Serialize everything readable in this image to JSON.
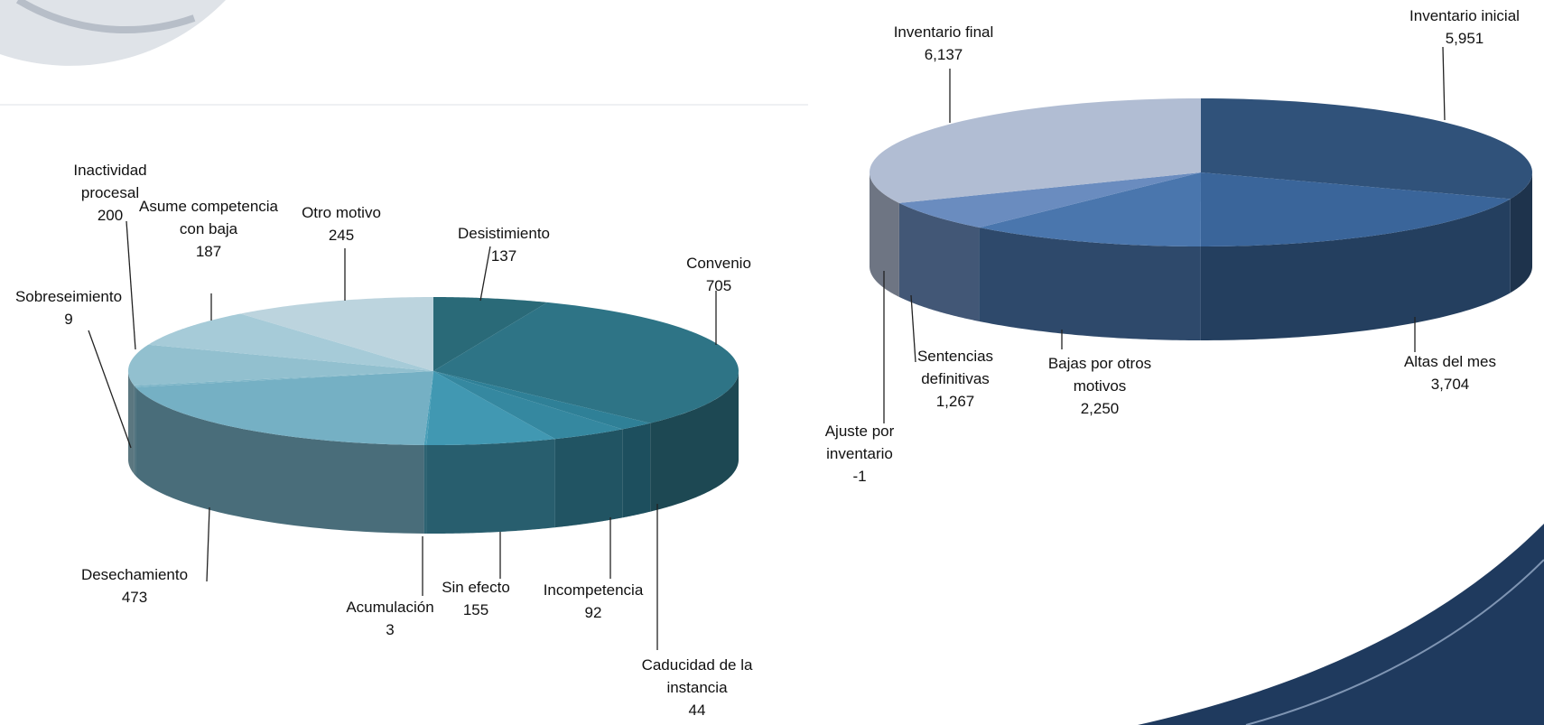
{
  "chart_data": [
    {
      "type": "pie",
      "categories": [
        "Desistimiento",
        "Convenio",
        "Caducidad de la instancia",
        "Incompetencia",
        "Sin efecto",
        "Acumulación",
        "Desechamiento",
        "Sobreseimiento",
        "Inactividad procesal",
        "Asume competencia con baja",
        "Otro motivo"
      ],
      "values": [
        137,
        705,
        44,
        92,
        155,
        3,
        473,
        9,
        200,
        187,
        245
      ],
      "colors": [
        "#2a6a78",
        "#2e7486",
        "#2f8097",
        "#3588a0",
        "#4198b2",
        "#4a9fb8",
        "#75b0c4",
        "#7fb6c8",
        "#92c0cf",
        "#a6cbd8",
        "#bcd4de"
      ]
    },
    {
      "type": "pie",
      "categories": [
        "Inventario inicial",
        "Altas del mes",
        "Bajas por otros motivos",
        "Sentencias definitivas",
        "Ajuste por inventario",
        "Inventario final"
      ],
      "values": [
        5951,
        3704,
        2250,
        1267,
        -1,
        6137
      ],
      "value_labels": [
        "5,951",
        "3,704",
        "2,250",
        "1,267",
        "-1",
        "6,137"
      ],
      "colors": [
        "#30527a",
        "#3a659a",
        "#4a76ad",
        "#6a8cbf",
        "#8aa4cc",
        "#b1bdd3"
      ]
    }
  ]
}
